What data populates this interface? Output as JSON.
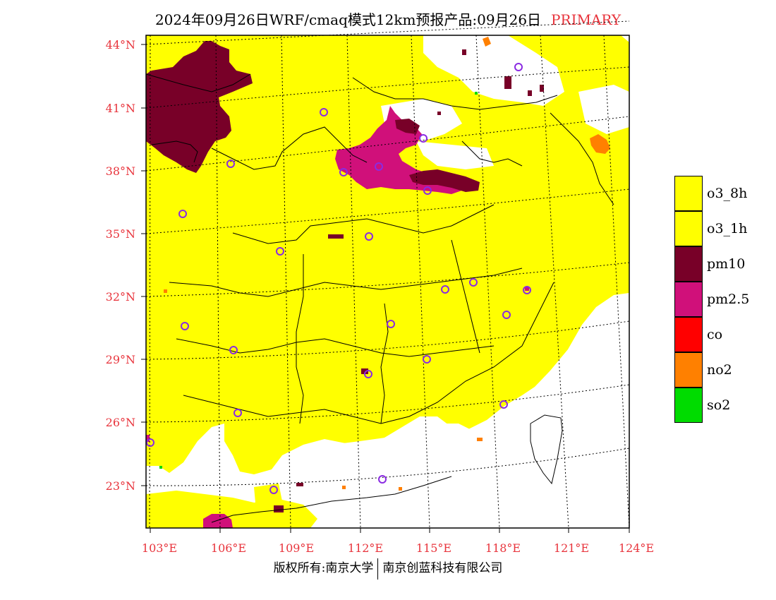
{
  "title": {
    "main": "2024年09月26日WRF/cmaq模式12km预报产品:09月26日",
    "tag": "PRIMARY"
  },
  "axes": {
    "lat_labels": [
      "44°N",
      "41°N",
      "38°N",
      "35°N",
      "32°N",
      "29°N",
      "26°N",
      "23°N"
    ],
    "lon_labels": [
      "103°E",
      "106°E",
      "109°E",
      "112°E",
      "115°E",
      "118°E",
      "121°E",
      "124°E"
    ]
  },
  "legend": {
    "items": [
      {
        "label": "o3_8h",
        "color": "#ffff00"
      },
      {
        "label": "o3_1h",
        "color": "#ffff00"
      },
      {
        "label": "pm10",
        "color": "#780028"
      },
      {
        "label": "pm2.5",
        "color": "#d0107a"
      },
      {
        "label": "co",
        "color": "#ff0000"
      },
      {
        "label": "no2",
        "color": "#ff8000"
      },
      {
        "label": "so2",
        "color": "#00dc00"
      }
    ]
  },
  "footer": {
    "left": "版权所有:南京大学",
    "right": "南京创蓝科技有限公司"
  },
  "colors": {
    "accent": "#e8343c",
    "o3": "#ffff00",
    "pm10": "#780028",
    "pm25": "#d0107a",
    "no2": "#ff8000",
    "so2": "#00dc00",
    "station": "#8a2be2"
  }
}
